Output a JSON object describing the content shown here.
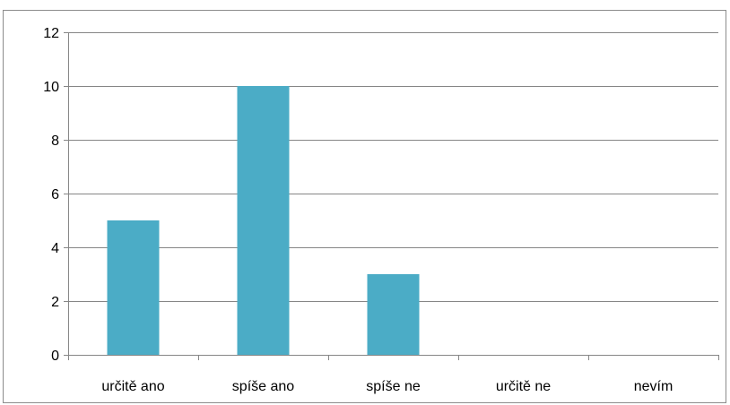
{
  "chart_data": {
    "type": "bar",
    "categories": [
      "určitě ano",
      "spíše ano",
      "spíše ne",
      "určitě ne",
      "nevím"
    ],
    "values": [
      5,
      10,
      3,
      0,
      0
    ],
    "title": "",
    "xlabel": "",
    "ylabel": "",
    "ylim": [
      0,
      12
    ],
    "yticks": [
      0,
      2,
      4,
      6,
      8,
      10,
      12
    ],
    "grid": true,
    "legend": "none",
    "colors": {
      "bar": "#4bacc6",
      "grid": "#868686",
      "axis": "#868686",
      "text": "#000000"
    }
  }
}
